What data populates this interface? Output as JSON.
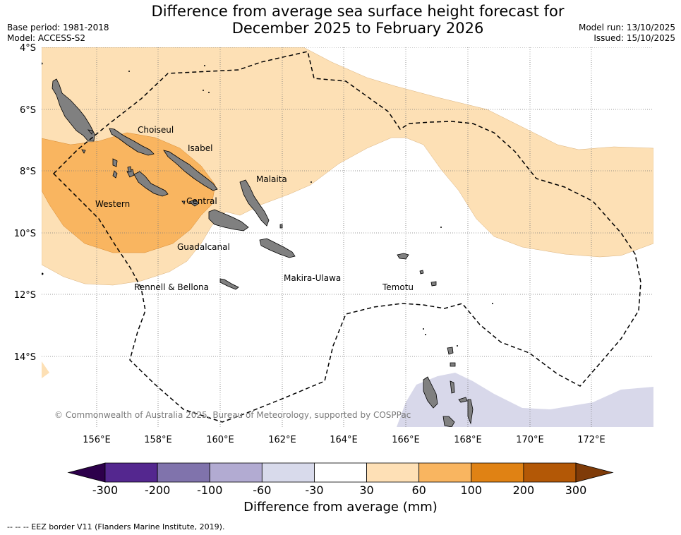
{
  "title": {
    "line1": "Difference from average sea surface height forecast for",
    "line2": "December 2025 to February 2026"
  },
  "meta": {
    "base_period": "Base period: 1981-2018",
    "model": "Model: ACCESS-S2",
    "model_run": "Model run: 13/10/2025",
    "issued": "Issued: 15/10/2025"
  },
  "map": {
    "lat_labels": [
      "4°S",
      "6°S",
      "8°S",
      "10°S",
      "12°S",
      "14°S"
    ],
    "lon_labels": [
      "156°E",
      "158°E",
      "160°E",
      "162°E",
      "164°E",
      "166°E",
      "168°E",
      "170°E",
      "172°E"
    ],
    "places": {
      "choiseul": "Choiseul",
      "isabel": "Isabel",
      "malaita": "Malaita",
      "central": "Central",
      "western": "Western",
      "guadalcanal": "Guadalcanal",
      "makira": "Makira-Ulawa",
      "rennell": "Rennell & Bellona",
      "temotu": "Temotu"
    },
    "copyright": "© Commonwealth of Australia 2025, Bureau of Meteorology, supported by COSPPac",
    "colors": {
      "land": "#808080",
      "shade_30_60": "#fde0b5",
      "shade_60_100": "#f9b560",
      "shade_neg": "#d8d8ea"
    }
  },
  "colorbar": {
    "title": "Difference from average (mm)",
    "ticks": [
      "-300",
      "-200",
      "-100",
      "-60",
      "-30",
      "30",
      "60",
      "100",
      "200",
      "300"
    ],
    "colors": [
      "#54278f",
      "#8073ac",
      "#b2abd2",
      "#d8daeb",
      "#ffffff",
      "#fee0b6",
      "#f9b560",
      "#e08214",
      "#b35806"
    ],
    "under_color": "#2d004b",
    "over_color": "#7f3b08"
  },
  "legend_note": "--  --  -- EEZ border V11 (Flanders Marine Institute, 2019)."
}
